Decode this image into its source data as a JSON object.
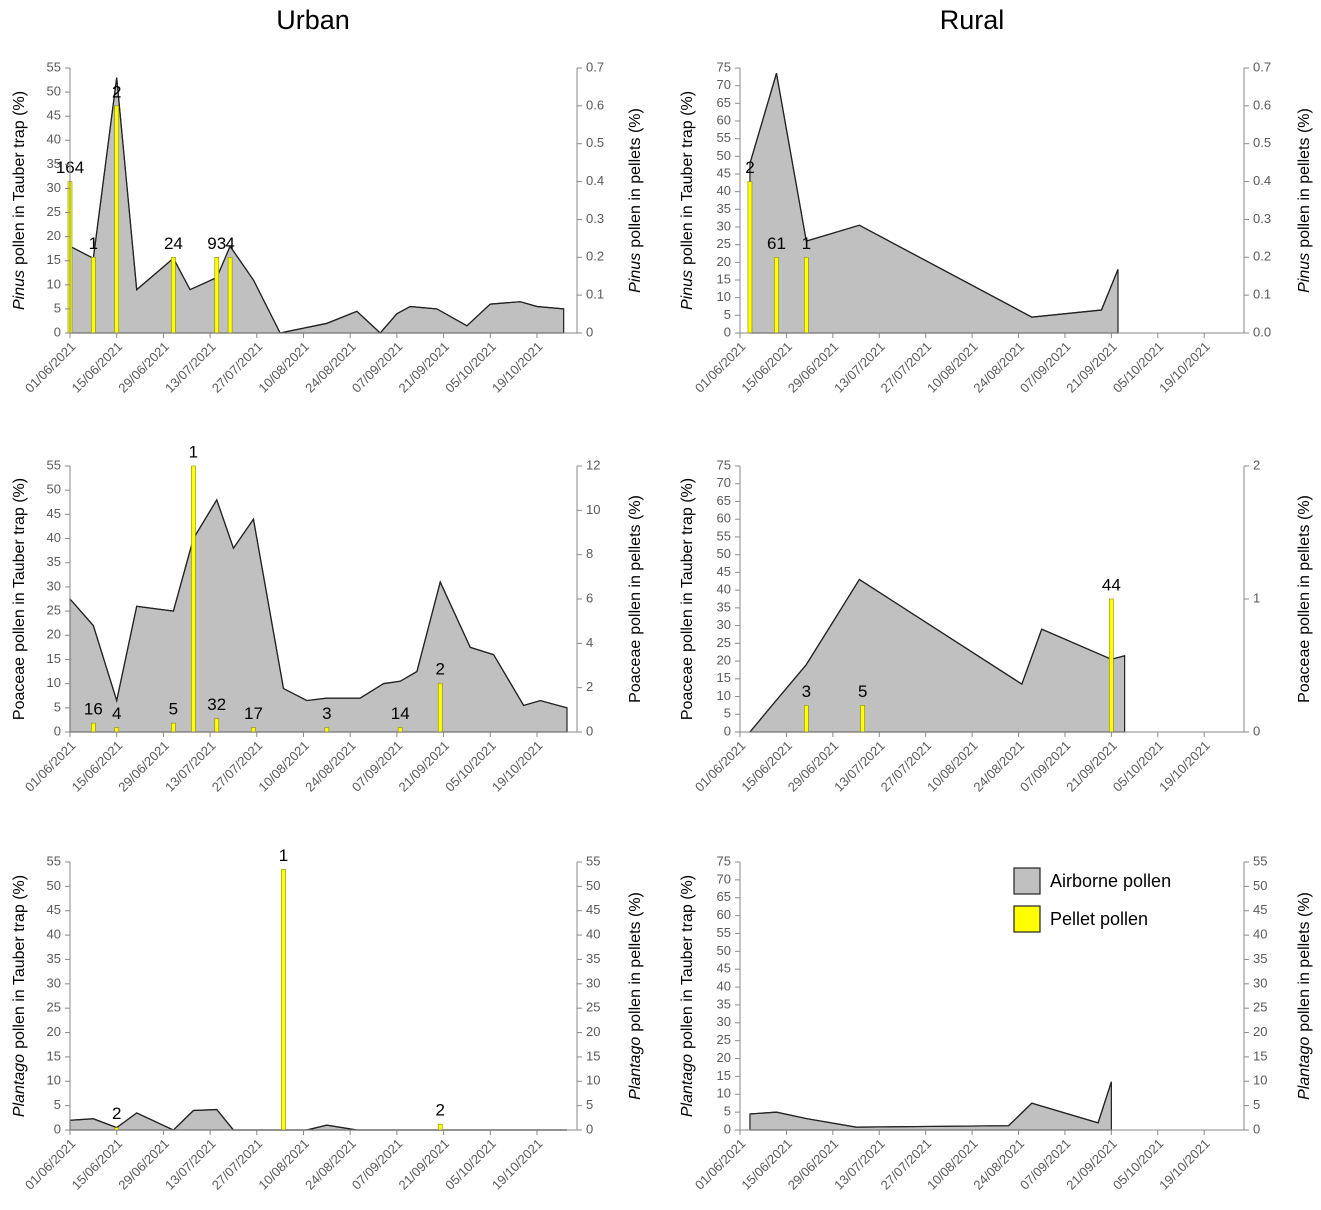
{
  "columns": [
    "Urban",
    "Rural"
  ],
  "chart_data": [
    {
      "type": "combo",
      "taxon": "Pinus",
      "taxon_italic": true,
      "ylabel": "pollen in Tauber trap (%)",
      "y2label": "pollen in pellets (%)",
      "xlim": [
        "01/06/2021",
        "31/10/2021"
      ],
      "xticks": [
        "01/06/2021",
        "15/06/2021",
        "29/06/2021",
        "13/07/2021",
        "27/07/2021",
        "10/08/2021",
        "24/08/2021",
        "07/09/2021",
        "21/09/2021",
        "05/10/2021",
        "19/10/2021"
      ],
      "ylim": [
        0,
        55
      ],
      "yticks": [
        0,
        5,
        10,
        15,
        20,
        25,
        30,
        35,
        40,
        45,
        50,
        55
      ],
      "y2lim": [
        0,
        0.7
      ],
      "y2ticks": [
        0,
        0.1,
        0.2,
        0.3,
        0.4,
        0.5,
        0.6,
        0.7
      ],
      "series": [
        {
          "name": "Airborne pollen",
          "type": "area",
          "color": "#c0c0c0",
          "x": [
            "01/06/2021",
            "08/06/2021",
            "15/06/2021",
            "21/06/2021",
            "02/07/2021",
            "07/07/2021",
            "15/07/2021",
            "19/07/2021",
            "26/07/2021",
            "03/08/2021",
            "17/08/2021",
            "26/08/2021",
            "02/09/2021",
            "07/09/2021",
            "11/09/2021",
            "19/09/2021",
            "28/09/2021",
            "05/10/2021",
            "14/10/2021",
            "19/10/2021",
            "27/10/2021"
          ],
          "values": [
            18,
            15.5,
            53,
            9,
            15.5,
            9,
            11.5,
            18,
            11,
            0,
            2,
            4.5,
            0,
            4,
            5.5,
            5,
            1.5,
            6,
            6.5,
            5.5,
            5
          ]
        },
        {
          "name": "Pellet pollen",
          "type": "bar",
          "axis": "y2",
          "color": "#ffff00",
          "x": [
            "01/06/2021",
            "08/06/2021",
            "15/06/2021",
            "02/07/2021",
            "15/07/2021",
            "19/07/2021"
          ],
          "values": [
            0.4,
            0.2,
            0.6,
            0.2,
            0.2,
            0.2
          ],
          "bar_labels": [
            "164",
            "1",
            "2",
            "24",
            "93",
            "4"
          ]
        }
      ]
    },
    {
      "type": "combo",
      "taxon": "Pinus",
      "taxon_italic": true,
      "ylabel": "pollen in Tauber trap (%)",
      "y2label": "pollen in pellets (%)",
      "xlim": [
        "01/06/2021",
        "31/10/2021"
      ],
      "xticks": [
        "01/06/2021",
        "15/06/2021",
        "29/06/2021",
        "13/07/2021",
        "27/07/2021",
        "10/08/2021",
        "24/08/2021",
        "07/09/2021",
        "21/09/2021",
        "05/10/2021",
        "19/10/2021"
      ],
      "ylim": [
        0,
        75
      ],
      "yticks": [
        0,
        5,
        10,
        15,
        20,
        25,
        30,
        35,
        40,
        45,
        50,
        55,
        60,
        65,
        70,
        75
      ],
      "y2lim": [
        0,
        0.7
      ],
      "y2ticks": [
        {
          "value": 0,
          "label": "0.0"
        },
        0.1,
        0.2,
        0.3,
        0.4,
        0.5,
        0.6,
        0.7
      ],
      "series": [
        {
          "name": "Airborne pollen",
          "type": "area",
          "color": "#c0c0c0",
          "x": [
            "04/06/2021",
            "12/06/2021",
            "21/06/2021",
            "07/07/2021",
            "28/08/2021",
            "18/09/2021",
            "23/09/2021"
          ],
          "values": [
            48,
            73.5,
            26,
            30.5,
            4.5,
            6.5,
            18
          ]
        },
        {
          "name": "Pellet pollen",
          "type": "bar",
          "axis": "y2",
          "color": "#ffff00",
          "x": [
            "04/06/2021",
            "12/06/2021",
            "21/06/2021"
          ],
          "values": [
            0.4,
            0.2,
            0.2
          ],
          "bar_labels": [
            "2",
            "61",
            "1"
          ]
        }
      ]
    },
    {
      "type": "combo",
      "taxon": "Poaceae",
      "taxon_italic": false,
      "ylabel": "pollen in Tauber trap (%)",
      "y2label": "pollen in pellets (%)",
      "xlim": [
        "01/06/2021",
        "31/10/2021"
      ],
      "xticks": [
        "01/06/2021",
        "15/06/2021",
        "29/06/2021",
        "13/07/2021",
        "27/07/2021",
        "10/08/2021",
        "24/08/2021",
        "07/09/2021",
        "21/09/2021",
        "05/10/2021",
        "19/10/2021"
      ],
      "ylim": [
        0,
        55
      ],
      "yticks": [
        0,
        5,
        10,
        15,
        20,
        25,
        30,
        35,
        40,
        45,
        50,
        55
      ],
      "y2lim": [
        0,
        12
      ],
      "y2ticks": [
        0,
        2,
        4,
        6,
        8,
        10,
        12
      ],
      "series": [
        {
          "name": "Airborne pollen",
          "type": "area",
          "color": "#c0c0c0",
          "x": [
            "01/06/2021",
            "08/06/2021",
            "15/06/2021",
            "21/06/2021",
            "02/07/2021",
            "08/07/2021",
            "15/07/2021",
            "20/07/2021",
            "26/07/2021",
            "04/08/2021",
            "11/08/2021",
            "17/08/2021",
            "27/08/2021",
            "03/09/2021",
            "08/09/2021",
            "13/09/2021",
            "20/09/2021",
            "29/09/2021",
            "06/10/2021",
            "15/10/2021",
            "20/10/2021",
            "28/10/2021"
          ],
          "values": [
            27.5,
            22,
            6.5,
            26,
            25,
            40,
            48,
            38,
            44,
            9,
            6.5,
            7,
            7,
            10,
            10.5,
            12.5,
            31,
            17.5,
            16,
            5.5,
            6.5,
            5
          ]
        },
        {
          "name": "Pellet pollen",
          "type": "bar",
          "axis": "y2",
          "color": "#ffff00",
          "x": [
            "08/06/2021",
            "15/06/2021",
            "02/07/2021",
            "08/07/2021",
            "15/07/2021",
            "26/07/2021",
            "17/08/2021",
            "08/09/2021",
            "20/09/2021"
          ],
          "values": [
            0.4,
            0.2,
            0.4,
            12,
            0.6,
            0.2,
            0.2,
            0.2,
            2.2
          ],
          "bar_labels": [
            "16",
            "4",
            "5",
            "1",
            "32",
            "17",
            "3",
            "14",
            "2"
          ]
        }
      ]
    },
    {
      "type": "combo",
      "taxon": "Poaceae",
      "taxon_italic": false,
      "ylabel": "pollen in Tauber trap (%)",
      "y2label": "pollen in pellets (%)",
      "xlim": [
        "01/06/2021",
        "31/10/2021"
      ],
      "xticks": [
        "01/06/2021",
        "15/06/2021",
        "29/06/2021",
        "13/07/2021",
        "27/07/2021",
        "10/08/2021",
        "24/08/2021",
        "07/09/2021",
        "21/09/2021",
        "05/10/2021",
        "19/10/2021"
      ],
      "ylim": [
        0,
        75
      ],
      "yticks": [
        0,
        5,
        10,
        15,
        20,
        25,
        30,
        35,
        40,
        45,
        50,
        55,
        60,
        65,
        70,
        75
      ],
      "y2lim": [
        0,
        2
      ],
      "y2ticks": [
        0,
        1,
        2
      ],
      "series": [
        {
          "name": "Airborne pollen",
          "type": "area",
          "color": "#c0c0c0",
          "x": [
            "04/06/2021",
            "12/06/2021",
            "21/06/2021",
            "07/07/2021",
            "25/08/2021",
            "31/08/2021",
            "21/09/2021",
            "25/09/2021"
          ],
          "values": [
            0,
            9,
            19,
            43,
            13.5,
            29,
            20.5,
            21.5
          ]
        },
        {
          "name": "Pellet pollen",
          "type": "bar",
          "axis": "y2",
          "color": "#ffff00",
          "x": [
            "21/06/2021",
            "08/07/2021",
            "21/09/2021"
          ],
          "values": [
            0.2,
            0.2,
            1
          ],
          "bar_labels": [
            "3",
            "5",
            "44"
          ]
        }
      ]
    },
    {
      "type": "combo",
      "taxon": "Plantago",
      "taxon_italic": true,
      "ylabel": "pollen in Tauber trap (%)",
      "y2label": "pollen in pellets (%)",
      "xlim": [
        "01/06/2021",
        "31/10/2021"
      ],
      "xticks": [
        "01/06/2021",
        "15/06/2021",
        "29/06/2021",
        "13/07/2021",
        "27/07/2021",
        "10/08/2021",
        "24/08/2021",
        "07/09/2021",
        "21/09/2021",
        "05/10/2021",
        "19/10/2021"
      ],
      "ylim": [
        0,
        55
      ],
      "yticks": [
        0,
        5,
        10,
        15,
        20,
        25,
        30,
        35,
        40,
        45,
        50,
        55
      ],
      "y2lim": [
        0,
        55
      ],
      "y2ticks": [
        0,
        5,
        10,
        15,
        20,
        25,
        30,
        35,
        40,
        45,
        50,
        55
      ],
      "series": [
        {
          "name": "Airborne pollen",
          "type": "area",
          "color": "#c0c0c0",
          "x": [
            "01/06/2021",
            "08/06/2021",
            "15/06/2021",
            "21/06/2021",
            "02/07/2021",
            "08/07/2021",
            "15/07/2021",
            "20/07/2021",
            "11/08/2021",
            "17/08/2021",
            "26/08/2021",
            "28/10/2021"
          ],
          "values": [
            2,
            2.3,
            0.5,
            3.5,
            0,
            4,
            4.2,
            0,
            0,
            1,
            0,
            0
          ]
        },
        {
          "name": "Pellet pollen",
          "type": "bar",
          "axis": "y2",
          "color": "#ffff00",
          "x": [
            "15/06/2021",
            "04/08/2021",
            "20/09/2021"
          ],
          "values": [
            0.5,
            53.5,
            1.2
          ],
          "bar_labels": [
            "2",
            "1",
            "2"
          ]
        }
      ]
    },
    {
      "type": "combo",
      "taxon": "Plantago",
      "taxon_italic": true,
      "ylabel": "pollen in Tauber trap (%)",
      "y2label": "pollen in pellets (%)",
      "xlim": [
        "01/06/2021",
        "31/10/2021"
      ],
      "xticks": [
        "01/06/2021",
        "15/06/2021",
        "29/06/2021",
        "13/07/2021",
        "27/07/2021",
        "10/08/2021",
        "24/08/2021",
        "07/09/2021",
        "21/09/2021",
        "05/10/2021",
        "19/10/2021"
      ],
      "ylim": [
        0,
        75
      ],
      "yticks": [
        0,
        5,
        10,
        15,
        20,
        25,
        30,
        35,
        40,
        45,
        50,
        55,
        60,
        65,
        70,
        75
      ],
      "y2lim": [
        0,
        55
      ],
      "y2ticks": [
        0,
        5,
        10,
        15,
        20,
        25,
        30,
        35,
        40,
        45,
        50,
        55
      ],
      "legend": "upper right",
      "series": [
        {
          "name": "Airborne pollen",
          "type": "area",
          "color": "#c0c0c0",
          "x": [
            "04/06/2021",
            "12/06/2021",
            "21/06/2021",
            "06/07/2021",
            "21/08/2021",
            "28/08/2021",
            "17/09/2021",
            "21/09/2021"
          ],
          "values": [
            4.5,
            5,
            3.2,
            0.8,
            1.2,
            7.5,
            2,
            13.5
          ]
        },
        {
          "name": "Pellet pollen",
          "type": "bar",
          "axis": "y2",
          "color": "#ffff00",
          "x": [],
          "values": [],
          "bar_labels": []
        }
      ]
    }
  ]
}
